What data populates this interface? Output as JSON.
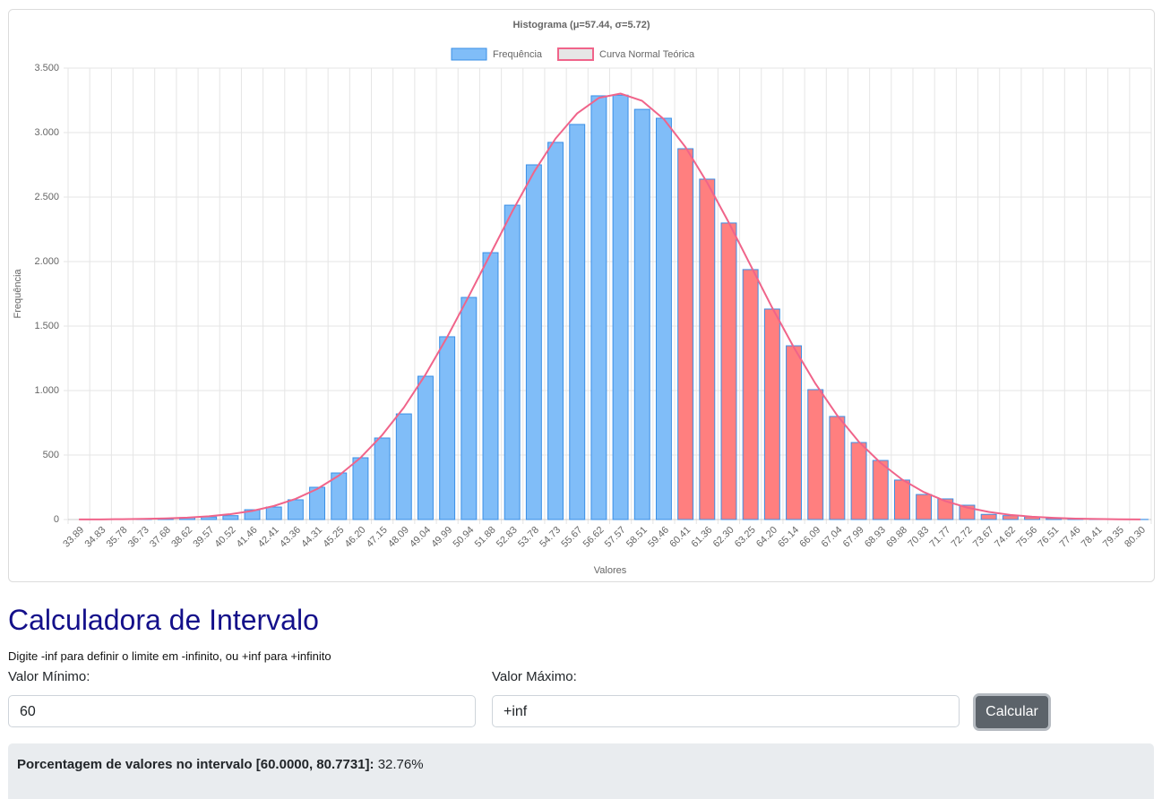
{
  "chart_data": {
    "type": "bar",
    "title": "Histograma (μ=57.44, σ=5.72)",
    "xlabel": "Valores",
    "ylabel": "Frequência",
    "categories": [
      "33.89",
      "34.83",
      "35.78",
      "36.73",
      "37.68",
      "38.62",
      "39.57",
      "40.52",
      "41.46",
      "42.41",
      "43.36",
      "44.31",
      "45.25",
      "46.20",
      "47.15",
      "48.09",
      "49.04",
      "49.99",
      "50.94",
      "51.88",
      "52.83",
      "53.78",
      "54.73",
      "55.67",
      "56.62",
      "57.57",
      "58.51",
      "59.46",
      "60.41",
      "61.36",
      "62.30",
      "63.25",
      "64.20",
      "65.14",
      "66.09",
      "67.04",
      "67.99",
      "68.93",
      "69.88",
      "70.83",
      "71.77",
      "72.72",
      "73.67",
      "74.62",
      "75.56",
      "76.51",
      "77.46",
      "78.41",
      "79.35",
      "80.30"
    ],
    "series": [
      {
        "name": "Frequência",
        "type": "bar",
        "color": "#80bdf8",
        "border_color": "#3a8fe6",
        "colors": [
          "#80bdf8",
          "#80bdf8",
          "#80bdf8",
          "#80bdf8",
          "#80bdf8",
          "#80bdf8",
          "#80bdf8",
          "#80bdf8",
          "#80bdf8",
          "#80bdf8",
          "#80bdf8",
          "#80bdf8",
          "#80bdf8",
          "#80bdf8",
          "#80bdf8",
          "#80bdf8",
          "#80bdf8",
          "#80bdf8",
          "#80bdf8",
          "#80bdf8",
          "#80bdf8",
          "#80bdf8",
          "#80bdf8",
          "#80bdf8",
          "#80bdf8",
          "#80bdf8",
          "#80bdf8",
          "#80bdf8",
          "#ff7f7f",
          "#ff7f7f",
          "#ff7f7f",
          "#ff7f7f",
          "#ff7f7f",
          "#ff7f7f",
          "#ff7f7f",
          "#ff7f7f",
          "#ff7f7f",
          "#ff7f7f",
          "#ff7f7f",
          "#ff7f7f",
          "#ff7f7f",
          "#ff7f7f",
          "#ff7f7f",
          "#ff7f7f",
          "#ff7f7f",
          "#ff7f7f",
          "#ff7f7f",
          "#ff7f7f",
          "#ff7f7f",
          "#ff7f7f"
        ],
        "values": [
          0,
          1,
          3,
          5,
          8,
          15,
          20,
          30,
          76,
          97,
          153,
          250,
          361,
          479,
          632,
          819,
          1111,
          1417,
          1722,
          2069,
          2437,
          2750,
          2924,
          3063,
          3285,
          3290,
          3180,
          3111,
          2875,
          2639,
          2299,
          1938,
          1632,
          1347,
          1007,
          799,
          597,
          458,
          306,
          194,
          160,
          111,
          40,
          30,
          20,
          10,
          8,
          3,
          2,
          1
        ]
      },
      {
        "name": "Curva Normal Teórica",
        "type": "line",
        "color": "#f0648a",
        "legend_fill": "#e6e6e6",
        "values": [
          1,
          1,
          3,
          5,
          9,
          15,
          25,
          42,
          67,
          105,
          160,
          237,
          341,
          479,
          655,
          868,
          1124,
          1415,
          1732,
          2059,
          2387,
          2692,
          2953,
          3149,
          3269,
          3302,
          3246,
          3104,
          2887,
          2612,
          2302,
          1972,
          1643,
          1335,
          1053,
          808,
          603,
          440,
          310,
          213,
          143,
          93,
          59,
          36,
          22,
          13,
          7,
          4,
          2,
          1
        ]
      }
    ],
    "ylim": [
      0,
      3500
    ],
    "yticks": [
      0,
      500,
      {
        "value": 1000,
        "label": "1.000"
      },
      {
        "value": 1500,
        "label": "1.500"
      },
      {
        "value": 2000,
        "label": "2.000"
      },
      {
        "value": 2500,
        "label": "2.500"
      },
      {
        "value": 3000,
        "label": "3.000"
      },
      {
        "value": 3500,
        "label": "3.500"
      }
    ],
    "grid": true,
    "legend": "top"
  },
  "calculator": {
    "title": "Calculadora de Intervalo",
    "hint": "Digite -inf para definir o limite em -infinito, ou +inf para +infinito",
    "min_label": "Valor Mínimo:",
    "min_value": "60",
    "max_label": "Valor Máximo:",
    "max_value": "+inf",
    "button": "Calcular",
    "result_label": "Porcentagem de valores no intervalo [60.0000, 80.7731]:",
    "result_value": "32.76%"
  }
}
